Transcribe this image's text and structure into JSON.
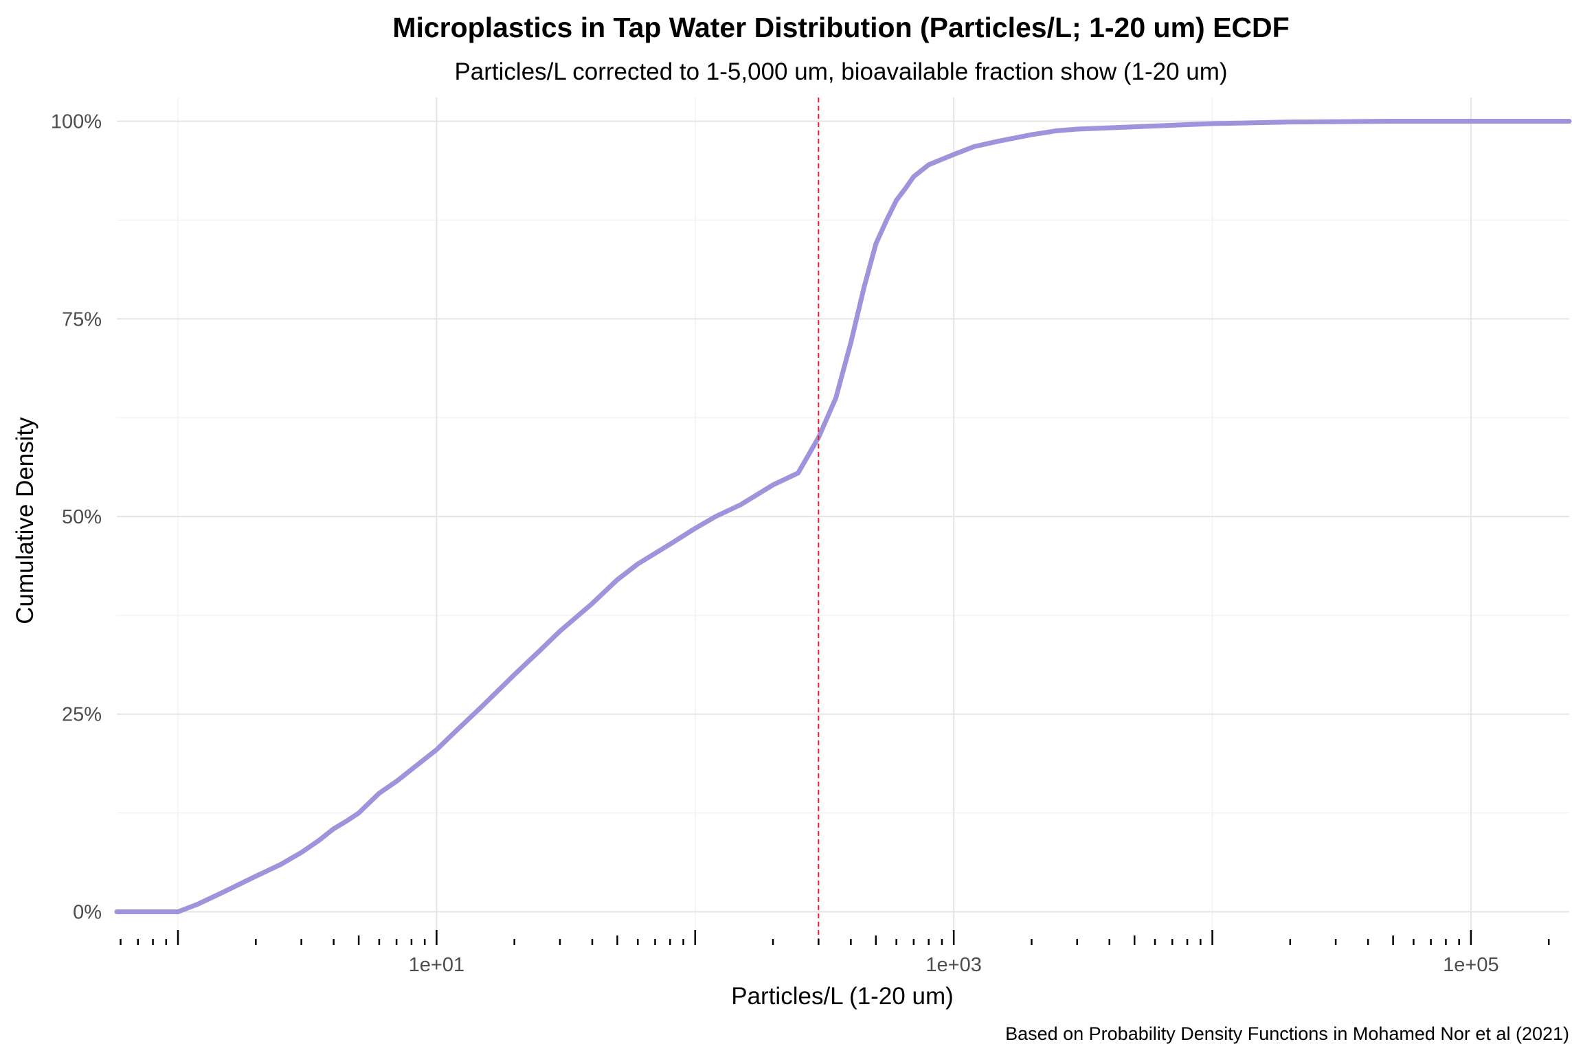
{
  "chart_data": {
    "type": "line",
    "title": "Microplastics in Tap Water Distribution (Particles/L; 1-20 um) ECDF",
    "subtitle": "Particles/L corrected to 1-5,000 um, bioavailable fraction show (1-20 um)",
    "xlabel": "Particles/L (1-20 um)",
    "ylabel": "Cumulative Density",
    "caption": "Based on Probability Density Functions in Mohamed Nor et al (2021)",
    "x_scale": "log10",
    "xlim": [
      0.58,
      240000
    ],
    "ylim": [
      -0.03,
      1.03
    ],
    "grid": true,
    "legend": "none",
    "line_color": "#9d94dc",
    "reference_color": "#e8202a",
    "x_ticks": [
      {
        "value": 10,
        "label": "1e+01"
      },
      {
        "value": 1000,
        "label": "1e+03"
      },
      {
        "value": 100000,
        "label": "1e+05"
      }
    ],
    "y_ticks": [
      {
        "value": 0,
        "label": "0%"
      },
      {
        "value": 0.25,
        "label": "25%"
      },
      {
        "value": 0.5,
        "label": "50%"
      },
      {
        "value": 0.75,
        "label": "75%"
      },
      {
        "value": 1,
        "label": "100%"
      }
    ],
    "reference_line": {
      "x": 300,
      "style": "dashed"
    },
    "series": [
      {
        "x": [
          0.58,
          1.0,
          1.2,
          1.5,
          2.0,
          2.5,
          3.0,
          3.5,
          4.0,
          4.5,
          5.0,
          6.0,
          7.0,
          8.0,
          10,
          12,
          15,
          20,
          25,
          30,
          40,
          50,
          60,
          80,
          100,
          120,
          150,
          200,
          250,
          300,
          350,
          400,
          450,
          500,
          550,
          600,
          650,
          700,
          800,
          1000,
          1200,
          1500,
          2000,
          2500,
          3000,
          5000,
          10000,
          20000,
          50000,
          100000,
          240000
        ],
        "y": [
          0.0,
          0.0,
          0.01,
          0.025,
          0.045,
          0.06,
          0.075,
          0.09,
          0.105,
          0.115,
          0.125,
          0.15,
          0.165,
          0.18,
          0.205,
          0.23,
          0.26,
          0.3,
          0.33,
          0.355,
          0.39,
          0.42,
          0.44,
          0.465,
          0.485,
          0.5,
          0.515,
          0.54,
          0.555,
          0.6,
          0.65,
          0.72,
          0.79,
          0.845,
          0.875,
          0.9,
          0.915,
          0.93,
          0.945,
          0.958,
          0.968,
          0.975,
          0.983,
          0.988,
          0.99,
          0.993,
          0.997,
          0.999,
          1.0,
          1.0,
          1.0
        ]
      }
    ]
  }
}
